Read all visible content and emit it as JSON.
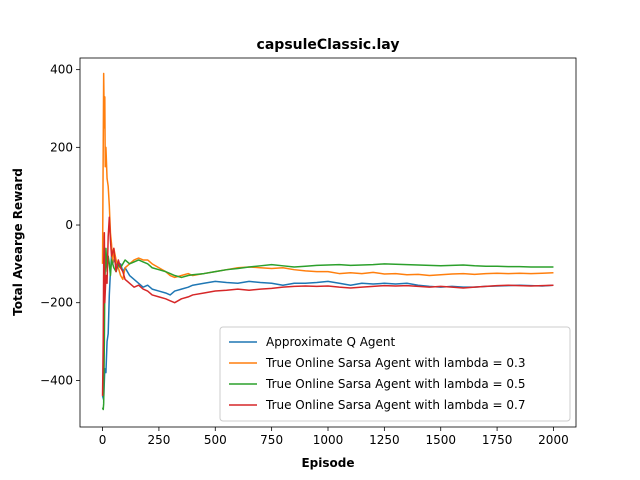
{
  "chart_data": {
    "type": "line",
    "title": "capsuleClassic.lay",
    "xlabel": "Episode",
    "ylabel": "Total Avearge Reward",
    "xlim": [
      -100,
      2100
    ],
    "ylim": [
      -520,
      430
    ],
    "xticks": [
      0,
      250,
      500,
      750,
      1000,
      1250,
      1500,
      1750,
      2000
    ],
    "yticks": [
      -400,
      -200,
      0,
      200,
      400
    ],
    "legend_position": "lower-right",
    "series": [
      {
        "name": "Approximate Q Agent",
        "color": "#1f77b4",
        "x": [
          0,
          5,
          10,
          15,
          20,
          25,
          30,
          35,
          40,
          45,
          50,
          60,
          70,
          80,
          90,
          100,
          120,
          140,
          160,
          180,
          200,
          220,
          250,
          280,
          300,
          320,
          350,
          380,
          400,
          450,
          500,
          550,
          600,
          650,
          700,
          750,
          800,
          850,
          900,
          950,
          1000,
          1050,
          1100,
          1150,
          1200,
          1250,
          1300,
          1350,
          1400,
          1450,
          1500,
          1550,
          1600,
          1650,
          1700,
          1750,
          1800,
          1850,
          1900,
          1950,
          2000
        ],
        "y": [
          -440,
          -450,
          -370,
          -380,
          -300,
          -280,
          -180,
          -120,
          -80,
          -100,
          -90,
          -100,
          -110,
          -100,
          -120,
          -110,
          -130,
          -140,
          -150,
          -160,
          -155,
          -165,
          -170,
          -175,
          -180,
          -170,
          -165,
          -160,
          -155,
          -150,
          -145,
          -148,
          -150,
          -145,
          -148,
          -150,
          -155,
          -150,
          -150,
          -148,
          -145,
          -150,
          -155,
          -150,
          -152,
          -150,
          -152,
          -150,
          -155,
          -158,
          -160,
          -158,
          -160,
          -160,
          -158,
          -157,
          -156,
          -155,
          -156,
          -157,
          -155
        ]
      },
      {
        "name": "True Online Sarsa Agent with lambda = 0.3",
        "color": "#ff7f0e",
        "x": [
          0,
          3,
          5,
          8,
          10,
          12,
          15,
          20,
          25,
          30,
          35,
          40,
          45,
          50,
          60,
          70,
          80,
          90,
          100,
          120,
          140,
          160,
          180,
          200,
          220,
          250,
          280,
          300,
          320,
          350,
          380,
          400,
          450,
          500,
          550,
          600,
          650,
          700,
          750,
          800,
          850,
          900,
          950,
          1000,
          1050,
          1100,
          1150,
          1200,
          1250,
          1300,
          1350,
          1400,
          1450,
          1500,
          1550,
          1600,
          1650,
          1700,
          1750,
          1800,
          1850,
          1900,
          1950,
          2000
        ],
        "y": [
          -100,
          200,
          390,
          250,
          330,
          150,
          200,
          120,
          100,
          50,
          -20,
          -50,
          -100,
          -60,
          -90,
          -110,
          -130,
          -140,
          -110,
          -100,
          -90,
          -85,
          -90,
          -90,
          -100,
          -110,
          -120,
          -130,
          -135,
          -130,
          -125,
          -130,
          -125,
          -120,
          -115,
          -110,
          -108,
          -110,
          -112,
          -110,
          -115,
          -118,
          -120,
          -120,
          -125,
          -123,
          -125,
          -122,
          -126,
          -125,
          -128,
          -127,
          -130,
          -128,
          -126,
          -125,
          -127,
          -125,
          -124,
          -125,
          -124,
          -125,
          -124,
          -123
        ]
      },
      {
        "name": "True Online Sarsa Agent with lambda = 0.5",
        "color": "#2ca02c",
        "x": [
          0,
          3,
          5,
          8,
          10,
          15,
          20,
          25,
          30,
          35,
          40,
          50,
          60,
          70,
          80,
          90,
          100,
          120,
          140,
          160,
          180,
          200,
          220,
          250,
          280,
          300,
          320,
          350,
          380,
          400,
          450,
          500,
          550,
          600,
          650,
          700,
          750,
          800,
          850,
          900,
          950,
          1000,
          1050,
          1100,
          1150,
          1200,
          1250,
          1300,
          1350,
          1400,
          1450,
          1500,
          1550,
          1600,
          1650,
          1700,
          1750,
          1800,
          1850,
          1900,
          1950,
          2000
        ],
        "y": [
          -470,
          -475,
          -460,
          -300,
          -150,
          -60,
          -120,
          -80,
          -100,
          -130,
          -90,
          -110,
          -120,
          -100,
          -110,
          -100,
          -90,
          -100,
          -95,
          -90,
          -95,
          -100,
          -110,
          -115,
          -120,
          -125,
          -130,
          -135,
          -130,
          -128,
          -125,
          -120,
          -115,
          -112,
          -108,
          -105,
          -102,
          -105,
          -108,
          -106,
          -104,
          -103,
          -102,
          -104,
          -103,
          -102,
          -100,
          -101,
          -102,
          -103,
          -104,
          -105,
          -104,
          -103,
          -105,
          -106,
          -106,
          -107,
          -107,
          -108,
          -108,
          -108
        ]
      },
      {
        "name": "True Online Sarsa Agent with lambda = 0.7",
        "color": "#d62728",
        "x": [
          0,
          3,
          5,
          8,
          10,
          15,
          20,
          25,
          30,
          35,
          40,
          50,
          60,
          70,
          80,
          90,
          100,
          120,
          140,
          160,
          180,
          200,
          220,
          250,
          280,
          300,
          320,
          350,
          380,
          400,
          450,
          500,
          550,
          600,
          650,
          700,
          750,
          800,
          850,
          900,
          950,
          1000,
          1050,
          1100,
          1150,
          1200,
          1250,
          1300,
          1350,
          1400,
          1450,
          1500,
          1550,
          1600,
          1650,
          1700,
          1750,
          1800,
          1850,
          1900,
          1950,
          2000
        ],
        "y": [
          -440,
          -300,
          -100,
          -20,
          -200,
          -130,
          -150,
          -30,
          20,
          -40,
          -80,
          -60,
          -120,
          -90,
          -110,
          -120,
          -140,
          -150,
          -160,
          -155,
          -165,
          -170,
          -180,
          -185,
          -190,
          -195,
          -200,
          -190,
          -185,
          -180,
          -175,
          -170,
          -168,
          -165,
          -168,
          -165,
          -163,
          -160,
          -158,
          -157,
          -158,
          -157,
          -160,
          -162,
          -160,
          -158,
          -156,
          -157,
          -156,
          -158,
          -160,
          -158,
          -160,
          -162,
          -160,
          -158,
          -156,
          -155,
          -156,
          -157,
          -156,
          -155
        ]
      }
    ]
  }
}
